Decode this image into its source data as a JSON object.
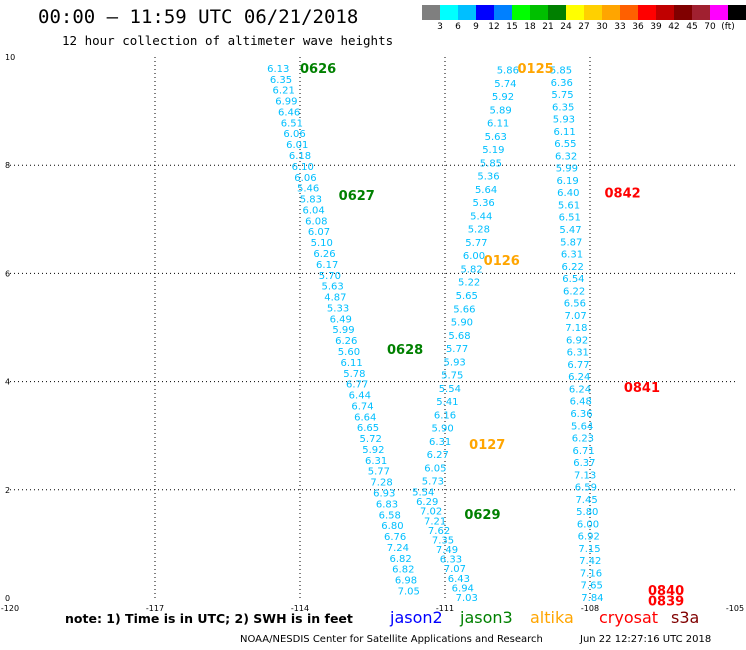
{
  "header": {
    "title": "00:00 — 11:59 UTC 06/21/2018",
    "subtitle": "12 hour collection of altimeter wave heights"
  },
  "colorbar": {
    "colors": [
      "#7f7f7f",
      "#00ffff",
      "#00bfff",
      "#0000ff",
      "#0080ff",
      "#00ff00",
      "#00c000",
      "#008000",
      "#ffff00",
      "#ffd000",
      "#ffa500",
      "#ff6000",
      "#ff0000",
      "#c00000",
      "#800000",
      "#a02030",
      "#ff00ff",
      "#000000"
    ],
    "labels": [
      "3",
      "6",
      "9",
      "12",
      "15",
      "18",
      "21",
      "24",
      "27",
      "30",
      "33",
      "36",
      "39",
      "42",
      "45",
      "70",
      "(ft)"
    ]
  },
  "chart_data": {
    "type": "scatter",
    "title": "00:00 — 11:59 UTC 06/21/2018",
    "subtitle": "12 hour collection of altimeter wave heights",
    "xlim": [
      -120,
      -105
    ],
    "ylim": [
      0,
      10
    ],
    "xticks": [
      "-120",
      "-117",
      "-114",
      "-111",
      "-108",
      "-105"
    ],
    "yticks": [
      "0",
      "2",
      "4",
      "6",
      "8",
      "10"
    ],
    "grid": true,
    "value_color": "#00bfff",
    "time_labels": [
      {
        "text": "0626",
        "x": -114.0,
        "y": 9.8,
        "color": "#008000"
      },
      {
        "text": "0627",
        "x": -113.2,
        "y": 7.45,
        "color": "#008000"
      },
      {
        "text": "0628",
        "x": -112.2,
        "y": 4.6,
        "color": "#008000"
      },
      {
        "text": "0629",
        "x": -110.6,
        "y": 1.55,
        "color": "#008000"
      },
      {
        "text": "0125",
        "x": -109.5,
        "y": 9.8,
        "color": "#ffa500"
      },
      {
        "text": "0126",
        "x": -110.2,
        "y": 6.25,
        "color": "#ffa500"
      },
      {
        "text": "0127",
        "x": -110.5,
        "y": 2.85,
        "color": "#ffa500"
      },
      {
        "text": "0842",
        "x": -107.7,
        "y": 7.5,
        "color": "#ff0000"
      },
      {
        "text": "0841",
        "x": -107.3,
        "y": 3.9,
        "color": "#ff0000"
      },
      {
        "text": "0840",
        "x": -106.8,
        "y": 0.15,
        "color": "#ff0000"
      },
      {
        "text": "0839",
        "x": -106.8,
        "y": -0.05,
        "color": "#ff0000"
      }
    ],
    "series": [
      {
        "start": [
          -114.45,
          9.78
        ],
        "end": [
          -111.75,
          0.12
        ],
        "values": [
          "6.13",
          "6.35",
          "6.21",
          "6.99",
          "6.46",
          "6.51",
          "6.06",
          "6.01",
          "6.18",
          "6.10",
          "6.06",
          "5.46",
          "5.83",
          "6.04",
          "6.08",
          "6.07",
          "5.10",
          "6.26",
          "6.17",
          "5.70",
          "5.63",
          "4.87",
          "5.33",
          "6.49",
          "5.99",
          "6.26",
          "5.60",
          "6.11",
          "5.78",
          "6.77",
          "6.44",
          "6.74",
          "6.64",
          "6.65",
          "5.72",
          "5.92",
          "6.31",
          "5.77",
          "7.28",
          "6.93",
          "6.83",
          "6.58",
          "6.80",
          "6.76",
          "7.24",
          "6.82",
          "6.82",
          "6.98",
          "7.05"
        ]
      },
      {
        "start": [
          -111.45,
          1.95
        ],
        "end": [
          -110.55,
          0.0
        ],
        "values": [
          "5.54",
          "6.29",
          "7.02",
          "7.21",
          "7.62",
          "7.35",
          "7.49",
          "6.33",
          "7.07",
          "6.43",
          "6.94",
          "7.03"
        ]
      },
      {
        "start": [
          -109.7,
          9.75
        ],
        "end": [
          -111.25,
          2.15
        ],
        "values": [
          "5.86",
          "5.74",
          "5.92",
          "5.89",
          "6.11",
          "5.63",
          "5.19",
          "5.85",
          "5.36",
          "5.64",
          "5.36",
          "5.44",
          "5.28",
          "5.77",
          "6.00",
          "5.82",
          "5.22",
          "5.65",
          "5.66",
          "5.90",
          "5.68",
          "5.77",
          "5.93",
          "5.75",
          "5.54",
          "5.41",
          "6.16",
          "5.90",
          "6.31",
          "6.27",
          "6.05",
          "5.73"
        ]
      },
      {
        "start": [
          -108.6,
          9.75
        ],
        "end": [
          -107.95,
          0.0
        ],
        "values": [
          "5.85",
          "6.36",
          "5.75",
          "6.35",
          "5.93",
          "6.11",
          "6.55",
          "6.32",
          "5.99",
          "6.19",
          "6.40",
          "5.61",
          "6.51",
          "5.47",
          "5.87",
          "6.31",
          "6.22",
          "6.54",
          "6.22",
          "6.56",
          "7.07",
          "7.18",
          "6.92",
          "6.31",
          "6.77",
          "6.24",
          "6.24",
          "6.48",
          "6.36",
          "5.64",
          "6.23",
          "6.71",
          "6.37",
          "7.13",
          "6.59",
          "7.45",
          "5.80",
          "6.00",
          "6.92",
          "7.15",
          "7.42",
          "7.16",
          "7.65",
          "7.84"
        ]
      }
    ]
  },
  "footer": {
    "note": "note: 1) Time is in UTC; 2) SWH is in feet",
    "legend": [
      {
        "label": "jason2",
        "color": "#0000ff"
      },
      {
        "label": "jason3",
        "color": "#008000"
      },
      {
        "label": "altika",
        "color": "#ffa500"
      },
      {
        "label": "cryosat",
        "color": "#ff0000"
      },
      {
        "label": "s3a",
        "color": "#800000"
      }
    ],
    "credit": "NOAA/NESDIS Center for Satellite Applications and Research",
    "timestamp": "Jun 22 12:27:16 UTC 2018"
  }
}
